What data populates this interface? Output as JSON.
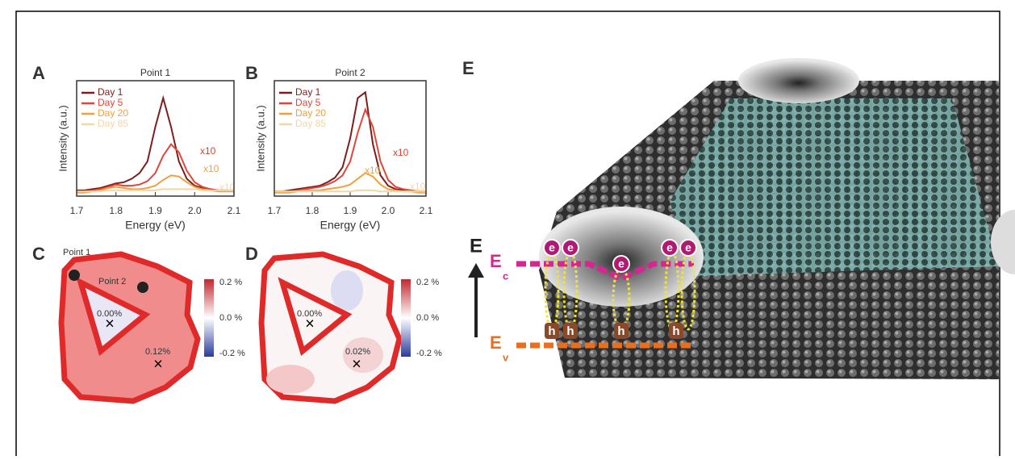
{
  "chart_data": [
    {
      "type": "line",
      "title": "Point 1",
      "xlabel": "Energy (eV)",
      "ylabel": "Intensity (a.u.)",
      "x": [
        1.7,
        1.72,
        1.74,
        1.76,
        1.78,
        1.8,
        1.82,
        1.84,
        1.86,
        1.88,
        1.9,
        1.92,
        1.94,
        1.96,
        1.98,
        2.0,
        2.02,
        2.04,
        2.06,
        2.08,
        2.1
      ],
      "series": [
        {
          "name": "Day 1",
          "color": "#7a1f1c",
          "values": [
            0.05,
            0.05,
            0.06,
            0.07,
            0.09,
            0.11,
            0.12,
            0.15,
            0.2,
            0.3,
            0.6,
            0.85,
            0.6,
            0.3,
            0.15,
            0.09,
            0.07,
            0.06,
            0.05,
            0.05,
            0.05
          ]
        },
        {
          "name": "Day 5",
          "color": "#e0453a",
          "values": [
            0.04,
            0.04,
            0.05,
            0.06,
            0.08,
            0.1,
            0.09,
            0.09,
            0.1,
            0.13,
            0.2,
            0.35,
            0.45,
            0.38,
            0.22,
            0.12,
            0.08,
            0.06,
            0.05,
            0.05,
            0.04
          ]
        },
        {
          "name": "Day 20",
          "color": "#f0a040",
          "values": [
            0.03,
            0.03,
            0.04,
            0.05,
            0.07,
            0.08,
            0.07,
            0.06,
            0.06,
            0.07,
            0.09,
            0.14,
            0.18,
            0.17,
            0.12,
            0.08,
            0.06,
            0.05,
            0.04,
            0.04,
            0.04
          ]
        },
        {
          "name": "Day 85",
          "color": "#f3d6a6",
          "values": [
            0.04,
            0.04,
            0.04,
            0.04,
            0.05,
            0.05,
            0.05,
            0.05,
            0.05,
            0.05,
            0.05,
            0.06,
            0.06,
            0.06,
            0.06,
            0.06,
            0.05,
            0.05,
            0.05,
            0.05,
            0.05
          ]
        }
      ],
      "annotations": [
        {
          "text": "x10",
          "color": "#d9432f"
        },
        {
          "text": "x10",
          "color": "#f0a040"
        },
        {
          "text": "x10",
          "color": "#f3d6a6"
        }
      ],
      "xlim": [
        1.7,
        2.1
      ],
      "xticks": [
        1.7,
        1.8,
        1.9,
        {
          "value": 2,
          "label": "2.0"
        },
        2.1
      ],
      "ylim": [
        0,
        1
      ]
    },
    {
      "type": "line",
      "title": "Point 2",
      "xlabel": "Energy (eV)",
      "ylabel": "Intensity (a.u.)",
      "x": [
        1.7,
        1.72,
        1.74,
        1.76,
        1.78,
        1.8,
        1.82,
        1.84,
        1.86,
        1.88,
        1.9,
        1.92,
        1.94,
        1.96,
        1.98,
        2.0,
        2.02,
        2.04,
        2.06,
        2.08,
        2.1
      ],
      "series": [
        {
          "name": "Day 1",
          "color": "#7a1f1c",
          "values": [
            0.04,
            0.04,
            0.05,
            0.06,
            0.07,
            0.08,
            0.09,
            0.12,
            0.16,
            0.25,
            0.5,
            0.85,
            0.9,
            0.45,
            0.18,
            0.09,
            0.06,
            0.05,
            0.04,
            0.04,
            0.04
          ]
        },
        {
          "name": "Day 5",
          "color": "#e0453a",
          "values": [
            0.04,
            0.04,
            0.04,
            0.05,
            0.06,
            0.07,
            0.08,
            0.1,
            0.13,
            0.18,
            0.3,
            0.55,
            0.75,
            0.6,
            0.3,
            0.14,
            0.08,
            0.06,
            0.05,
            0.04,
            0.04
          ]
        },
        {
          "name": "Day 20",
          "color": "#f0a040",
          "values": [
            0.03,
            0.03,
            0.03,
            0.04,
            0.05,
            0.05,
            0.05,
            0.06,
            0.07,
            0.08,
            0.1,
            0.15,
            0.2,
            0.17,
            0.1,
            0.06,
            0.05,
            0.04,
            0.04,
            0.03,
            0.03
          ]
        },
        {
          "name": "Day 85",
          "color": "#f3d6a6",
          "values": [
            0.04,
            0.04,
            0.04,
            0.04,
            0.04,
            0.04,
            0.04,
            0.04,
            0.04,
            0.04,
            0.04,
            0.05,
            0.05,
            0.05,
            0.04,
            0.04,
            0.04,
            0.04,
            0.04,
            0.04,
            0.04
          ]
        }
      ],
      "annotations": [
        {
          "text": "x10",
          "color": "#d9432f"
        },
        {
          "text": "x10",
          "color": "#f0a040"
        },
        {
          "text": "x10",
          "color": "#f3d6a6"
        }
      ],
      "xlim": [
        1.7,
        2.1
      ],
      "xticks": [
        1.7,
        1.8,
        1.9,
        {
          "value": 2,
          "label": "2.0"
        },
        2.1
      ],
      "ylim": [
        0,
        1
      ]
    }
  ],
  "figure": {
    "panel_letters": [
      "A",
      "B",
      "C",
      "D",
      "E"
    ],
    "map_c": {
      "point_labels": [
        "Point 1",
        "Point 2"
      ],
      "strain_labels": [
        "0.00%",
        "0.12%"
      ],
      "colorbar_ticks": [
        "0.2 %",
        "0.0 %",
        "-0.2 %"
      ]
    },
    "map_d": {
      "strain_labels": [
        "0.00%",
        "0.02%"
      ],
      "colorbar_ticks": [
        "0.2 %",
        "0.0 %",
        "-0.2 %"
      ]
    },
    "band_diagram": {
      "energy_label": "E",
      "conduction": {
        "symbol": "E",
        "sub": "c"
      },
      "valence": {
        "symbol": "E",
        "sub": "v"
      },
      "electrons": [
        "e",
        "e",
        "e",
        "e",
        "e"
      ],
      "holes": [
        "h",
        "h",
        "h",
        "h"
      ]
    }
  }
}
